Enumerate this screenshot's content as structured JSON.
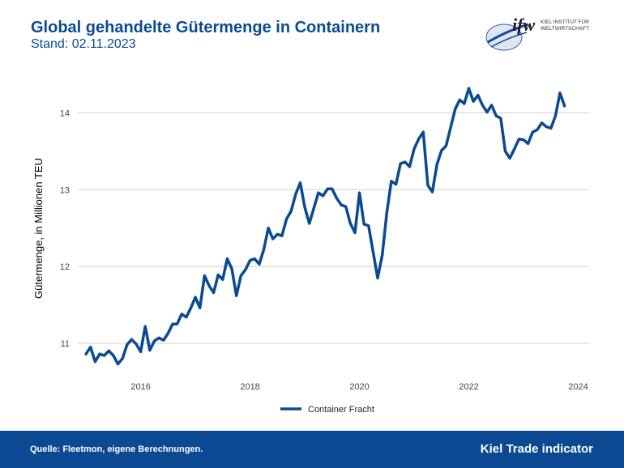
{
  "header": {
    "title": "Global gehandelte Gütermenge in Containern",
    "subtitle": "Stand: 02.11.2023"
  },
  "logo": {
    "mark": "ifw",
    "line1": "KIEL INSTITUT FÜR",
    "line2": "WELTWIRTSCHAFT"
  },
  "footer": {
    "source": "Quelle: Fleetmon, eigene Berechnungen.",
    "brand": "Kiel Trade indicator"
  },
  "colors": {
    "brand": "#0b4a92",
    "grid": "#cfcfcf"
  },
  "chart_data": {
    "type": "line",
    "title": "Global gehandelte Gütermenge in Containern",
    "ylabel": "Gütermenge, in Millionen TEU",
    "xlabel": "",
    "xlim": [
      2014.85,
      2024.2
    ],
    "ylim": [
      10.62,
      14.5
    ],
    "x_ticks": [
      2016,
      2018,
      2020,
      2022,
      2024
    ],
    "y_ticks": [
      11,
      12,
      13,
      14
    ],
    "grid": "horizontal",
    "legend": "bottom-center",
    "series": [
      {
        "name": "Container Fracht",
        "color": "#0b4a92",
        "x": [
          2015.0,
          2015.083,
          2015.167,
          2015.25,
          2015.333,
          2015.417,
          2015.5,
          2015.583,
          2015.667,
          2015.75,
          2015.833,
          2015.917,
          2016.0,
          2016.083,
          2016.167,
          2016.25,
          2016.333,
          2016.417,
          2016.5,
          2016.583,
          2016.667,
          2016.75,
          2016.833,
          2016.917,
          2017.0,
          2017.083,
          2017.167,
          2017.25,
          2017.333,
          2017.417,
          2017.5,
          2017.583,
          2017.667,
          2017.75,
          2017.833,
          2017.917,
          2018.0,
          2018.083,
          2018.167,
          2018.25,
          2018.333,
          2018.417,
          2018.5,
          2018.583,
          2018.667,
          2018.75,
          2018.833,
          2018.917,
          2019.0,
          2019.083,
          2019.167,
          2019.25,
          2019.333,
          2019.417,
          2019.5,
          2019.583,
          2019.667,
          2019.75,
          2019.833,
          2019.917,
          2020.0,
          2020.083,
          2020.167,
          2020.25,
          2020.333,
          2020.417,
          2020.5,
          2020.583,
          2020.667,
          2020.75,
          2020.833,
          2020.917,
          2021.0,
          2021.083,
          2021.167,
          2021.25,
          2021.333,
          2021.417,
          2021.5,
          2021.583,
          2021.667,
          2021.75,
          2021.833,
          2021.917,
          2022.0,
          2022.083,
          2022.167,
          2022.25,
          2022.333,
          2022.417,
          2022.5,
          2022.583,
          2022.667,
          2022.75,
          2022.833,
          2022.917,
          2023.0,
          2023.083,
          2023.167,
          2023.25,
          2023.333,
          2023.417,
          2023.5,
          2023.583,
          2023.667,
          2023.75
        ],
        "y": [
          10.86,
          10.95,
          10.76,
          10.86,
          10.84,
          10.9,
          10.84,
          10.73,
          10.8,
          10.98,
          11.05,
          10.99,
          10.89,
          11.22,
          10.91,
          11.03,
          11.07,
          11.04,
          11.13,
          11.25,
          11.25,
          11.38,
          11.34,
          11.46,
          11.6,
          11.46,
          11.88,
          11.75,
          11.66,
          11.89,
          11.83,
          12.1,
          11.97,
          11.62,
          11.88,
          11.96,
          12.08,
          12.1,
          12.03,
          12.22,
          12.5,
          12.36,
          12.42,
          12.4,
          12.62,
          12.72,
          12.94,
          13.09,
          12.77,
          12.56,
          12.76,
          12.96,
          12.92,
          13.01,
          13.01,
          12.89,
          12.8,
          12.78,
          12.56,
          12.44,
          12.96,
          12.55,
          12.53,
          12.19,
          11.85,
          12.15,
          12.7,
          13.11,
          13.07,
          13.34,
          13.36,
          13.3,
          13.53,
          13.66,
          13.75,
          13.06,
          12.97,
          13.33,
          13.51,
          13.57,
          13.81,
          14.05,
          14.17,
          14.12,
          14.32,
          14.15,
          14.23,
          14.1,
          14.01,
          14.1,
          13.96,
          13.93,
          13.5,
          13.41,
          13.53,
          13.66,
          13.65,
          13.6,
          13.75,
          13.78,
          13.87,
          13.82,
          13.8,
          13.96,
          14.26,
          14.09
        ]
      }
    ]
  }
}
